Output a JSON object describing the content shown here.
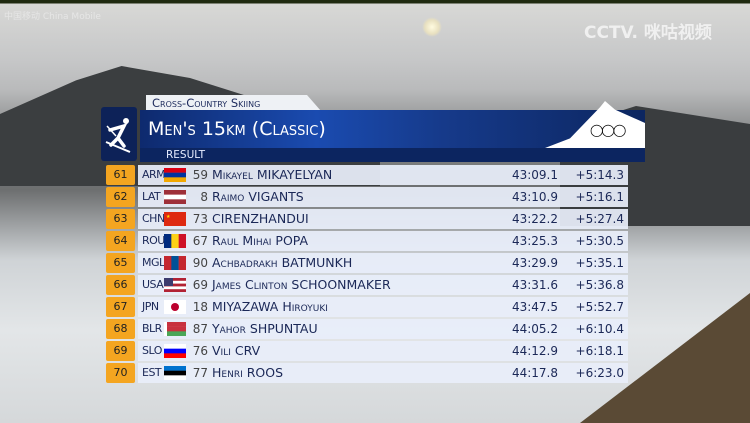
{
  "broadcast": {
    "left_logo": "中国移动 China Mobile",
    "right_logo": "CCTV. 咪咕视频"
  },
  "event": {
    "sport": "Cross-Country Skiing",
    "title": "Men's 15km (Classic)",
    "subtitle": "RESULT",
    "sport_icon": "skier-icon",
    "olympic_icon": "olympic-rings-icon"
  },
  "results": [
    {
      "rank": "61",
      "noc": "ARM",
      "flag": [
        "#d90012",
        "#0033a0",
        "#f2a800"
      ],
      "bib": "59",
      "given": "Mikayel",
      "family": "MIKAYELYAN",
      "time": "43:09.1",
      "gap": "+5:14.3"
    },
    {
      "rank": "62",
      "noc": "LAT",
      "flag": [
        "#9e3039",
        "#ffffff",
        "#9e3039"
      ],
      "bib": "8",
      "given": "Raimo",
      "family": "VIGANTS",
      "time": "43:10.9",
      "gap": "+5:16.1"
    },
    {
      "rank": "63",
      "noc": "CHN",
      "flag": [
        "#de2910"
      ],
      "bib": "73",
      "given": "",
      "family": "CIRENZHANDUI",
      "time": "43:22.2",
      "gap": "+5:27.4"
    },
    {
      "rank": "64",
      "noc": "ROU",
      "flag": [
        "#002b7f",
        "#fcd116",
        "#ce1126"
      ],
      "vertical": true,
      "bib": "67",
      "given": "Raul Mihai",
      "family": "POPA",
      "time": "43:25.3",
      "gap": "+5:30.5"
    },
    {
      "rank": "65",
      "noc": "MGL",
      "flag": [
        "#c4272f",
        "#015197",
        "#c4272f"
      ],
      "vertical": true,
      "bib": "90",
      "given": "Achbadrakh",
      "family": "BATMUNKH",
      "time": "43:29.9",
      "gap": "+5:35.1"
    },
    {
      "rank": "66",
      "noc": "USA",
      "flag": [
        "#b22234",
        "#ffffff",
        "#b22234",
        "#ffffff",
        "#b22234"
      ],
      "bib": "69",
      "given": "James Clinton",
      "family": "SCHOONMAKER",
      "time": "43:31.6",
      "gap": "+5:36.8"
    },
    {
      "rank": "67",
      "noc": "JPN",
      "flag": [
        "#ffffff"
      ],
      "bib": "18",
      "given": "",
      "family": "MIYAZAWA",
      "given_after": "Hiroyuki",
      "time": "43:47.5",
      "gap": "+5:52.7"
    },
    {
      "rank": "68",
      "noc": "BLR",
      "flag": [
        "#c8313e",
        "#c8313e",
        "#4aa657"
      ],
      "bib": "87",
      "given": "Yahor",
      "family": "SHPUNTAU",
      "time": "44:05.2",
      "gap": "+6:10.4"
    },
    {
      "rank": "69",
      "noc": "SLO",
      "flag": [
        "#ffffff",
        "#0000ff",
        "#ff0000"
      ],
      "bib": "76",
      "given": "Vili",
      "family": "CRV",
      "time": "44:12.9",
      "gap": "+6:18.1"
    },
    {
      "rank": "70",
      "noc": "EST",
      "flag": [
        "#0072ce",
        "#000000",
        "#ffffff"
      ],
      "bib": "77",
      "given": "Henri",
      "family": "ROOS",
      "time": "44:17.8",
      "gap": "+6:23.0"
    }
  ],
  "colors": {
    "rank_bg": "#f4a520",
    "title_bg": "#0e2a6e",
    "row_bg": "#e8eefa"
  }
}
